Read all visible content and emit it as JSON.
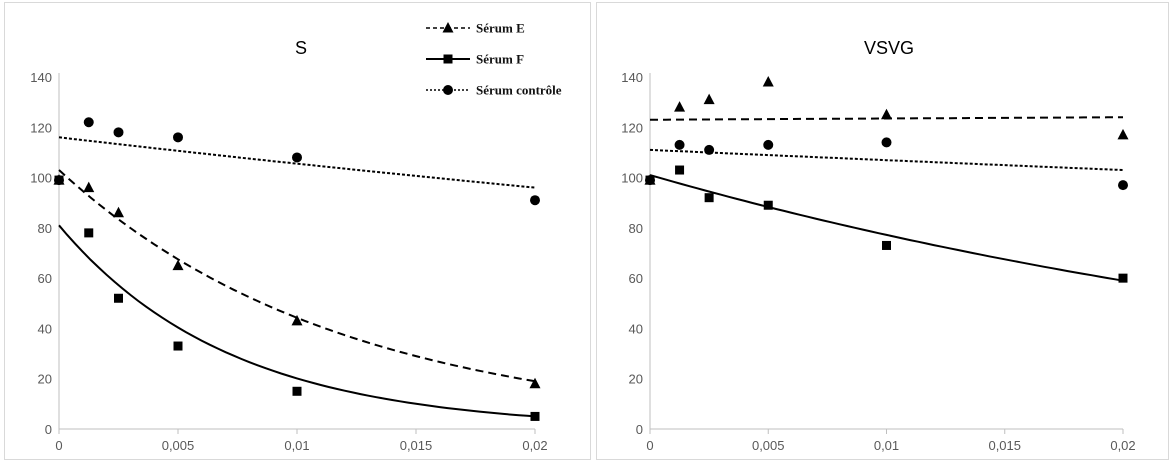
{
  "chart_data": [
    {
      "type": "scatter",
      "title": "S",
      "xlabel": "",
      "ylabel": "",
      "xlim": [
        0,
        0.02
      ],
      "ylim": [
        0,
        140
      ],
      "x_ticks": [
        "0",
        "0,005",
        "0,01",
        "0,015",
        "0,02"
      ],
      "y_ticks": [
        "0",
        "20",
        "40",
        "60",
        "80",
        "100",
        "120",
        "140"
      ],
      "grid": false,
      "legend": "top-right",
      "series": [
        {
          "name": "Sérum E",
          "marker": "triangle",
          "line": "dashed",
          "x": [
            0,
            0.00125,
            0.0025,
            0.005,
            0.01,
            0.02
          ],
          "values": [
            99,
            96,
            86,
            65,
            43,
            18
          ],
          "trend": {
            "type": "exponential",
            "from": 103,
            "to": 19
          }
        },
        {
          "name": "Sérum F",
          "marker": "square",
          "line": "solid",
          "x": [
            0,
            0.00125,
            0.0025,
            0.005,
            0.01,
            0.02
          ],
          "values": [
            99,
            78,
            52,
            33,
            15,
            5
          ],
          "trend": {
            "type": "exponential",
            "from": 81,
            "to": 5
          }
        },
        {
          "name": "Sérum contrôle",
          "marker": "circle",
          "line": "dotted",
          "x": [
            0,
            0.00125,
            0.0025,
            0.005,
            0.01,
            0.02
          ],
          "values": [
            99,
            122,
            118,
            116,
            108,
            91
          ],
          "trend": {
            "type": "exponential",
            "from": 116,
            "to": 96
          }
        }
      ]
    },
    {
      "type": "scatter",
      "title": "VSVG",
      "xlabel": "",
      "ylabel": "",
      "xlim": [
        0,
        0.02
      ],
      "ylim": [
        0,
        140
      ],
      "x_ticks": [
        "0",
        "0,005",
        "0,01",
        "0,015",
        "0,02"
      ],
      "y_ticks": [
        "0",
        "20",
        "40",
        "60",
        "80",
        "100",
        "120",
        "140"
      ],
      "grid": false,
      "legend": "none",
      "series": [
        {
          "name": "Sérum E",
          "marker": "triangle",
          "line": "dashed",
          "x": [
            0,
            0.00125,
            0.0025,
            0.005,
            0.01,
            0.02
          ],
          "values": [
            99,
            128,
            131,
            138,
            125,
            117
          ],
          "trend": {
            "type": "exponential",
            "from": 123,
            "to": 124
          }
        },
        {
          "name": "Sérum F",
          "marker": "square",
          "line": "solid",
          "x": [
            0,
            0.00125,
            0.0025,
            0.005,
            0.01,
            0.02
          ],
          "values": [
            99,
            103,
            92,
            89,
            73,
            60
          ],
          "trend": {
            "type": "exponential",
            "from": 101,
            "to": 59
          }
        },
        {
          "name": "Sérum contrôle",
          "marker": "circle",
          "line": "dotted",
          "x": [
            0,
            0.00125,
            0.0025,
            0.005,
            0.01,
            0.02
          ],
          "values": [
            99,
            113,
            111,
            113,
            114,
            97
          ],
          "trend": {
            "type": "exponential",
            "from": 111,
            "to": 103
          }
        }
      ]
    }
  ],
  "legend": {
    "items": [
      {
        "label": "Sérum E",
        "marker": "triangle",
        "line": "dashed"
      },
      {
        "label": "Sérum F",
        "marker": "square",
        "line": "solid"
      },
      {
        "label": "Sérum contrôle",
        "marker": "circle",
        "line": "dotted"
      }
    ]
  }
}
